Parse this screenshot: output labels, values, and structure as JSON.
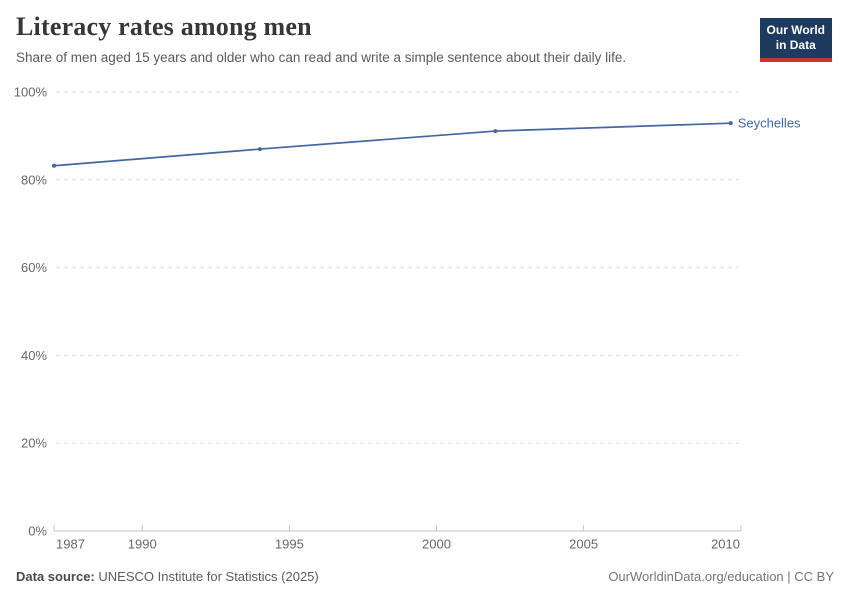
{
  "header": {
    "title": "Literacy rates among men",
    "subtitle": "Share of men aged 15 years and older who can read and write a simple sentence about their daily life.",
    "logo": {
      "line1": "Our World",
      "line2": "in Data"
    }
  },
  "colors": {
    "series_blue": "#4166a2",
    "logo_navy": "#1d3a5f",
    "logo_red": "#cc352c",
    "gridline": "#dedede",
    "axis_line": "#c4c4c4",
    "tick_text": "#666666"
  },
  "chart_data": {
    "type": "line",
    "title": "Literacy rates among men",
    "xlabel": "",
    "ylabel": "",
    "series": [
      {
        "name": "Seychelles",
        "color": "#4166a2",
        "points": [
          {
            "x": 1987,
            "y": 83.2
          },
          {
            "x": 1994,
            "y": 87.0
          },
          {
            "x": 2002,
            "y": 91.1
          },
          {
            "x": 2010,
            "y": 92.9
          }
        ]
      }
    ],
    "xlim": [
      1987,
      2010.35
    ],
    "ylim": [
      0,
      100
    ],
    "xticks": [
      1987,
      1990,
      1995,
      2000,
      2005,
      2010
    ],
    "yticks": [
      0,
      20,
      40,
      60,
      80,
      100
    ],
    "ytick_format": "{v}%",
    "grid": "horizontal-dashed",
    "legend_position": "line-end-label"
  },
  "footer": {
    "datasource_label": "Data source:",
    "datasource_value": "UNESCO Institute for Statistics (2025)",
    "attribution": "OurWorldinData.org/education | CC BY"
  }
}
